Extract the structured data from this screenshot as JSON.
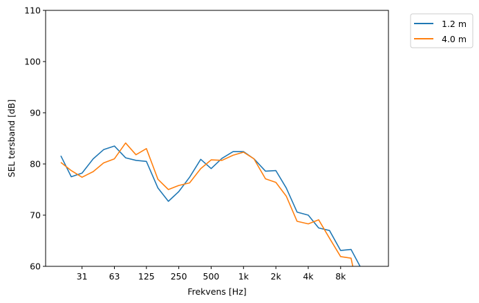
{
  "chart_data": {
    "type": "line",
    "title": "",
    "xlabel": "Frekvens [Hz]",
    "ylabel": "SEL tersband [dB]",
    "ylim": [
      60,
      110
    ],
    "yticks": [
      60,
      70,
      80,
      90,
      100,
      110
    ],
    "xscale": "log (third-octave bands)",
    "x": [
      20,
      25,
      31.5,
      40,
      50,
      63,
      80,
      100,
      125,
      160,
      200,
      250,
      315,
      400,
      500,
      630,
      800,
      1000,
      1250,
      1600,
      2000,
      2500,
      3150,
      4000,
      5000,
      6300,
      8000,
      10000,
      12500
    ],
    "xticks": [
      {
        "value": 31.5,
        "label": "31"
      },
      {
        "value": 63,
        "label": "63"
      },
      {
        "value": 125,
        "label": "125"
      },
      {
        "value": 250,
        "label": "250"
      },
      {
        "value": 500,
        "label": "500"
      },
      {
        "value": 1000,
        "label": "1k"
      },
      {
        "value": 2000,
        "label": "2k"
      },
      {
        "value": 4000,
        "label": "4k"
      },
      {
        "value": 8000,
        "label": "8k"
      }
    ],
    "series": [
      {
        "name": "1.2 m",
        "color": "#1f77b4",
        "values": [
          81.6,
          77.5,
          78.2,
          81.0,
          82.8,
          83.5,
          81.2,
          80.7,
          80.5,
          75.3,
          72.7,
          74.6,
          77.4,
          80.9,
          79.1,
          81.1,
          82.4,
          82.4,
          81.0,
          78.6,
          78.7,
          75.3,
          70.6,
          70.0,
          67.5,
          67.0,
          63.1,
          63.3,
          59.5
        ]
      },
      {
        "name": "4.0 m",
        "color": "#ff7f0e",
        "values": [
          80.3,
          78.7,
          77.4,
          78.5,
          80.2,
          81.0,
          84.1,
          81.8,
          83.0,
          77.0,
          75.0,
          75.8,
          76.3,
          79.1,
          80.8,
          80.7,
          81.7,
          82.3,
          81.0,
          77.1,
          76.4,
          73.7,
          68.8,
          68.3,
          69.1,
          65.5,
          61.9,
          61.6,
          52.0
        ]
      }
    ],
    "legend": "outside-top-right",
    "grid": false
  }
}
